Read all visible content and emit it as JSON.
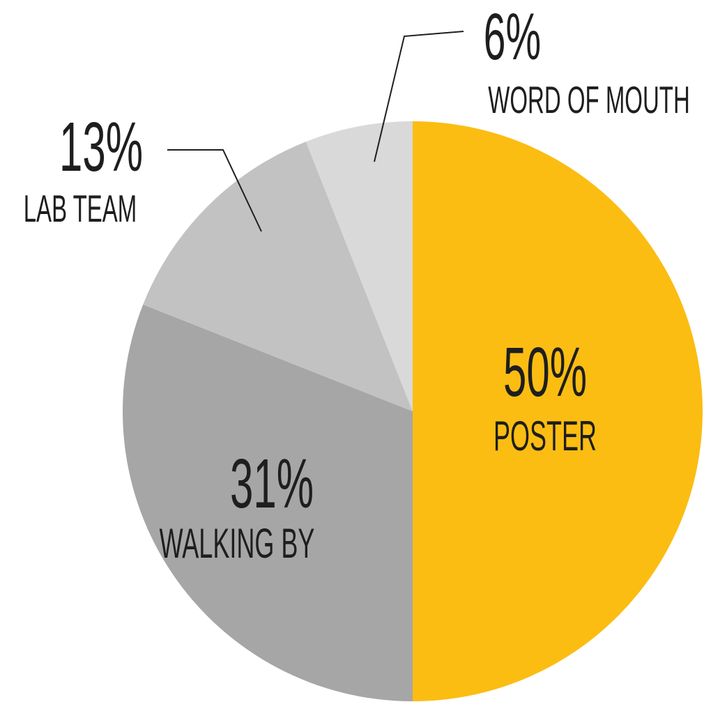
{
  "chart_data": {
    "type": "pie",
    "categories": [
      "POSTER",
      "WALKING BY",
      "LAB TEAM",
      "WORD OF MOUTH"
    ],
    "values": [
      50,
      31,
      13,
      6
    ],
    "value_labels": [
      "50%",
      "31%",
      "13%",
      "6%"
    ],
    "colors": [
      "#fbbd12",
      "#a6a6a6",
      "#c2c2c2",
      "#d9d9d9"
    ]
  }
}
